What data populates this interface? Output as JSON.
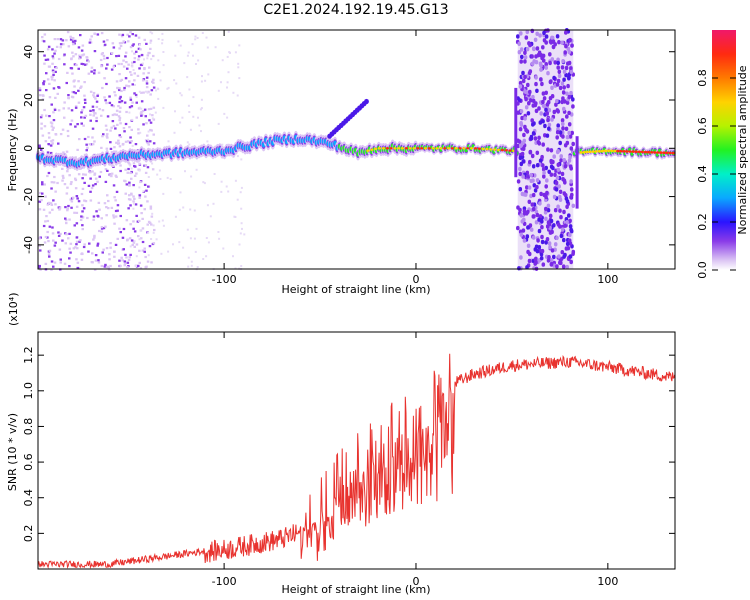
{
  "title": "C2E1.2024.192.19.45.G13",
  "chart_data": [
    {
      "type": "heatmap",
      "xlabel": "Height of straight line (km)",
      "ylabel": "Frequency (Hz)",
      "xlim": [
        -197,
        135
      ],
      "ylim": [
        -50,
        49
      ],
      "xticks": [
        -100,
        0,
        100
      ],
      "xtick_labels": [
        "-100",
        "0",
        "100"
      ],
      "yticks": [
        -40,
        -20,
        0,
        20,
        40
      ],
      "ytick_labels": [
        "-40",
        "-20",
        "0",
        "20",
        "40"
      ],
      "colorbar": {
        "label": "Normalized spectral amplitude",
        "range": [
          0,
          1
        ],
        "ticks": [
          0.0,
          0.2,
          0.4,
          0.6,
          0.8
        ],
        "tick_labels": [
          "0.0",
          "0.2",
          "0.4",
          "0.6",
          "0.8"
        ]
      },
      "ridge": [
        [
          -197,
          -4
        ],
        [
          -175,
          -6
        ],
        [
          -150,
          -3
        ],
        [
          -125,
          -2
        ],
        [
          -100,
          -1
        ],
        [
          -75,
          3
        ],
        [
          -60,
          4
        ],
        [
          -45,
          2
        ],
        [
          -30,
          -2
        ],
        [
          -20,
          0
        ],
        [
          0,
          0
        ],
        [
          30,
          0
        ],
        [
          50,
          -1
        ],
        [
          80,
          -2
        ],
        [
          100,
          -1
        ],
        [
          135,
          -2
        ]
      ],
      "spikes": [
        {
          "x": 52,
          "ymin": -12,
          "ymax": 25
        },
        {
          "x": 84,
          "ymin": -25,
          "ymax": 5
        }
      ]
    },
    {
      "type": "line",
      "xlabel": "Height of straight line (km)",
      "ylabel": "SNR (10 * v/v)",
      "exponent_label": "(x10⁴)",
      "xlim": [
        -197,
        135
      ],
      "ylim": [
        0,
        1.33
      ],
      "xticks": [
        -100,
        0,
        100
      ],
      "xtick_labels": [
        "-100",
        "0",
        "100"
      ],
      "yticks": [
        0.2,
        0.4,
        0.6,
        0.8,
        1.0,
        1.2
      ],
      "ytick_labels": [
        "0.2",
        "0.4",
        "0.6",
        "0.8",
        "1.0",
        "1.2"
      ],
      "color": "#e8322e",
      "envelope": [
        [
          -197,
          0.03
        ],
        [
          -160,
          0.03
        ],
        [
          -140,
          0.06
        ],
        [
          -120,
          0.09
        ],
        [
          -100,
          0.12
        ],
        [
          -80,
          0.16
        ],
        [
          -70,
          0.18
        ],
        [
          -60,
          0.22
        ],
        [
          -50,
          0.32
        ],
        [
          -40,
          0.45
        ],
        [
          -30,
          0.55
        ],
        [
          -20,
          0.65
        ],
        [
          -10,
          0.75
        ],
        [
          0,
          0.8
        ],
        [
          5,
          0.85
        ],
        [
          10,
          0.9
        ],
        [
          15,
          0.95
        ],
        [
          20,
          1.05
        ],
        [
          30,
          1.1
        ],
        [
          50,
          1.15
        ],
        [
          80,
          1.17
        ],
        [
          100,
          1.14
        ],
        [
          135,
          1.08
        ]
      ]
    }
  ]
}
